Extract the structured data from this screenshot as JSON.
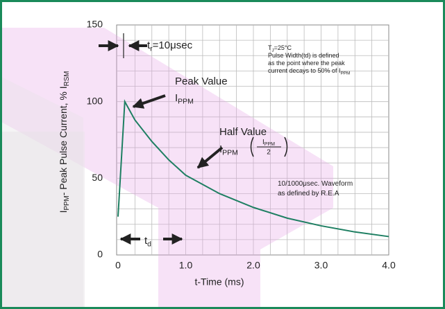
{
  "chart_data": {
    "type": "line",
    "x_label": "t-Time (ms)",
    "y_label": [
      {
        "text": "I"
      },
      {
        "text": "PPM",
        "sub": true
      },
      {
        "text": "- Peak Pulse Current, % I"
      },
      {
        "text": "RSM",
        "sub": true
      }
    ],
    "x": [
      0,
      0.1,
      0.25,
      0.5,
      0.75,
      1.0,
      1.5,
      2.0,
      2.5,
      3.0,
      3.5,
      4.0
    ],
    "series": [
      {
        "name": "10/1000μsec. Waveform",
        "color": "#1e7f62",
        "values": [
          25,
          100,
          88,
          74,
          62,
          52,
          40,
          31,
          24,
          19,
          15,
          12
        ]
      }
    ],
    "xlim": [
      0,
      4
    ],
    "ylim": [
      0,
      150
    ],
    "xticks": [
      {
        "value": 0,
        "label": "0"
      },
      {
        "value": 1,
        "label": "1.0"
      },
      {
        "value": 2,
        "label": "2.0"
      },
      {
        "value": 3,
        "label": "3.0"
      },
      {
        "value": 4,
        "label": "4.0"
      }
    ],
    "yticks": [
      0,
      50,
      100,
      150
    ],
    "xgrid": [
      0.25,
      0.5,
      0.75,
      1,
      1.25,
      1.5,
      1.75,
      2,
      2.25,
      2.5,
      2.75,
      3,
      3.25,
      3.5,
      3.75
    ],
    "ygrid": [
      10,
      20,
      30,
      40,
      50,
      60,
      70,
      80,
      90,
      100,
      110,
      120,
      130,
      140
    ],
    "annotations": [
      {
        "lines": [
          [
            {
              "text": "t"
            },
            {
              "text": "r",
              "sub": true
            },
            {
              "text": "=10μsec"
            }
          ]
        ]
      },
      {
        "lines": [
          [
            {
              "text": "T"
            },
            {
              "text": "J",
              "sub": true
            },
            {
              "text": "=25°C"
            }
          ],
          [
            {
              "text": "Pulse Width(td) is defined"
            }
          ],
          [
            {
              "text": "as the point where the peak"
            }
          ],
          [
            {
              "text": "current decays to 50% of I"
            },
            {
              "text": "PPM",
              "sub": true
            }
          ]
        ]
      },
      {
        "lines": [
          [
            {
              "text": "Peak Value"
            }
          ],
          [
            {
              "text": "I"
            },
            {
              "text": "PPM",
              "sub": true
            }
          ]
        ]
      },
      {
        "lines": [
          [
            {
              "text": "Half Value"
            }
          ],
          [
            {
              "text": "I"
            },
            {
              "text": "PPM",
              "sub": true
            }
          ]
        ],
        "fraction": {
          "num": [
            {
              "text": "I"
            },
            {
              "text": "PPM",
              "sub": true
            }
          ],
          "den": "2"
        }
      },
      {
        "lines": [
          [
            {
              "text": "10/1000μsec. Waveform"
            }
          ],
          [
            {
              "text": "as defined by R.E.A"
            }
          ]
        ]
      },
      {
        "lines": [
          [
            {
              "text": "t"
            },
            {
              "text": "d",
              "sub": true
            }
          ]
        ]
      }
    ]
  }
}
